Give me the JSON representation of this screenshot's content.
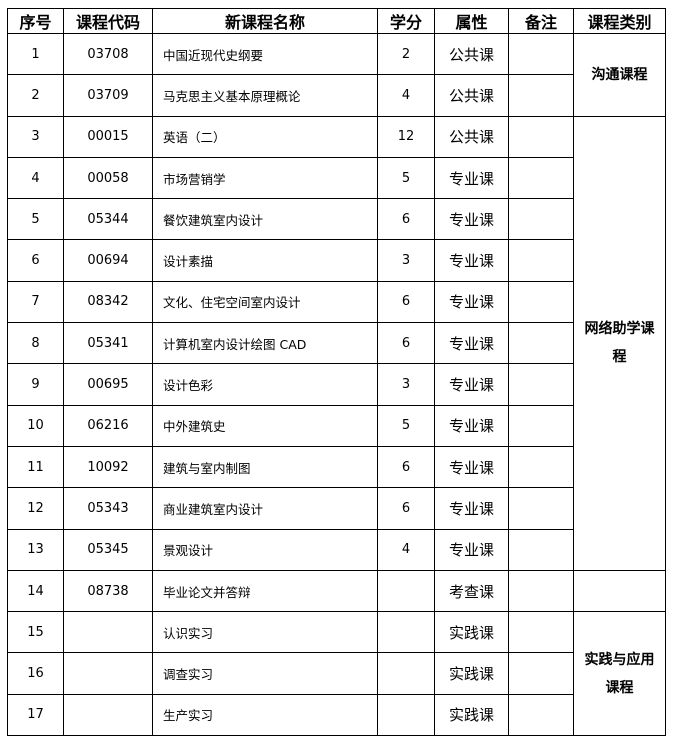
{
  "headers": [
    "序号",
    "课程代码",
    "新课程名称",
    "学分",
    "属性",
    "备注",
    "课程类别"
  ],
  "rows": [
    {
      "no": "1",
      "code": "03708",
      "name": "中国近现代史纲要",
      "credit": "2",
      "attr": "公共课",
      "note": ""
    },
    {
      "no": "2",
      "code": "03709",
      "name": "马克思主义基本原理概论",
      "credit": "4",
      "attr": "公共课",
      "note": ""
    },
    {
      "no": "3",
      "code": "00015",
      "name": "英语（二）",
      "credit": "12",
      "attr": "公共课",
      "note": ""
    },
    {
      "no": "4",
      "code": "00058",
      "name": "市场营销学",
      "credit": "5",
      "attr": "专业课",
      "note": ""
    },
    {
      "no": "5",
      "code": "05344",
      "name": "餐饮建筑室内设计",
      "credit": "6",
      "attr": "专业课",
      "note": ""
    },
    {
      "no": "6",
      "code": "00694",
      "name": "设计素描",
      "credit": "3",
      "attr": "专业课",
      "note": ""
    },
    {
      "no": "7",
      "code": "08342",
      "name": "文化、住宅空间室内设计",
      "credit": "6",
      "attr": "专业课",
      "note": ""
    },
    {
      "no": "8",
      "code": "05341",
      "name": "计算机室内设计绘图 CAD",
      "credit": "6",
      "attr": "专业课",
      "note": ""
    },
    {
      "no": "9",
      "code": "00695",
      "name": "设计色彩",
      "credit": "3",
      "attr": "专业课",
      "note": ""
    },
    {
      "no": "10",
      "code": "06216",
      "name": "中外建筑史",
      "credit": "5",
      "attr": "专业课",
      "note": ""
    },
    {
      "no": "11",
      "code": "10092",
      "name": "建筑与室内制图",
      "credit": "6",
      "attr": "专业课",
      "note": ""
    },
    {
      "no": "12",
      "code": "05343",
      "name": "商业建筑室内设计",
      "credit": "6",
      "attr": "专业课",
      "note": ""
    },
    {
      "no": "13",
      "code": "05345",
      "name": "景观设计",
      "credit": "4",
      "attr": "专业课",
      "note": ""
    },
    {
      "no": "14",
      "code": "08738",
      "name": "毕业论文并答辩",
      "credit": "",
      "attr": "考查课",
      "note": ""
    },
    {
      "no": "15",
      "code": "",
      "name": "认识实习",
      "credit": "",
      "attr": "实践课",
      "note": ""
    },
    {
      "no": "16",
      "code": "",
      "name": "调查实习",
      "credit": "",
      "attr": "实践课",
      "note": ""
    },
    {
      "no": "17",
      "code": "",
      "name": "生产实习",
      "credit": "",
      "attr": "实践课",
      "note": ""
    }
  ],
  "categories": [
    {
      "label": "沟通课程",
      "start": 0,
      "span": 2
    },
    {
      "label": "网络助学课程",
      "start": 2,
      "span": 11
    },
    {
      "label": "",
      "start": 13,
      "span": 1
    },
    {
      "label": "实践与应用课程",
      "start": 14,
      "span": 3
    }
  ]
}
